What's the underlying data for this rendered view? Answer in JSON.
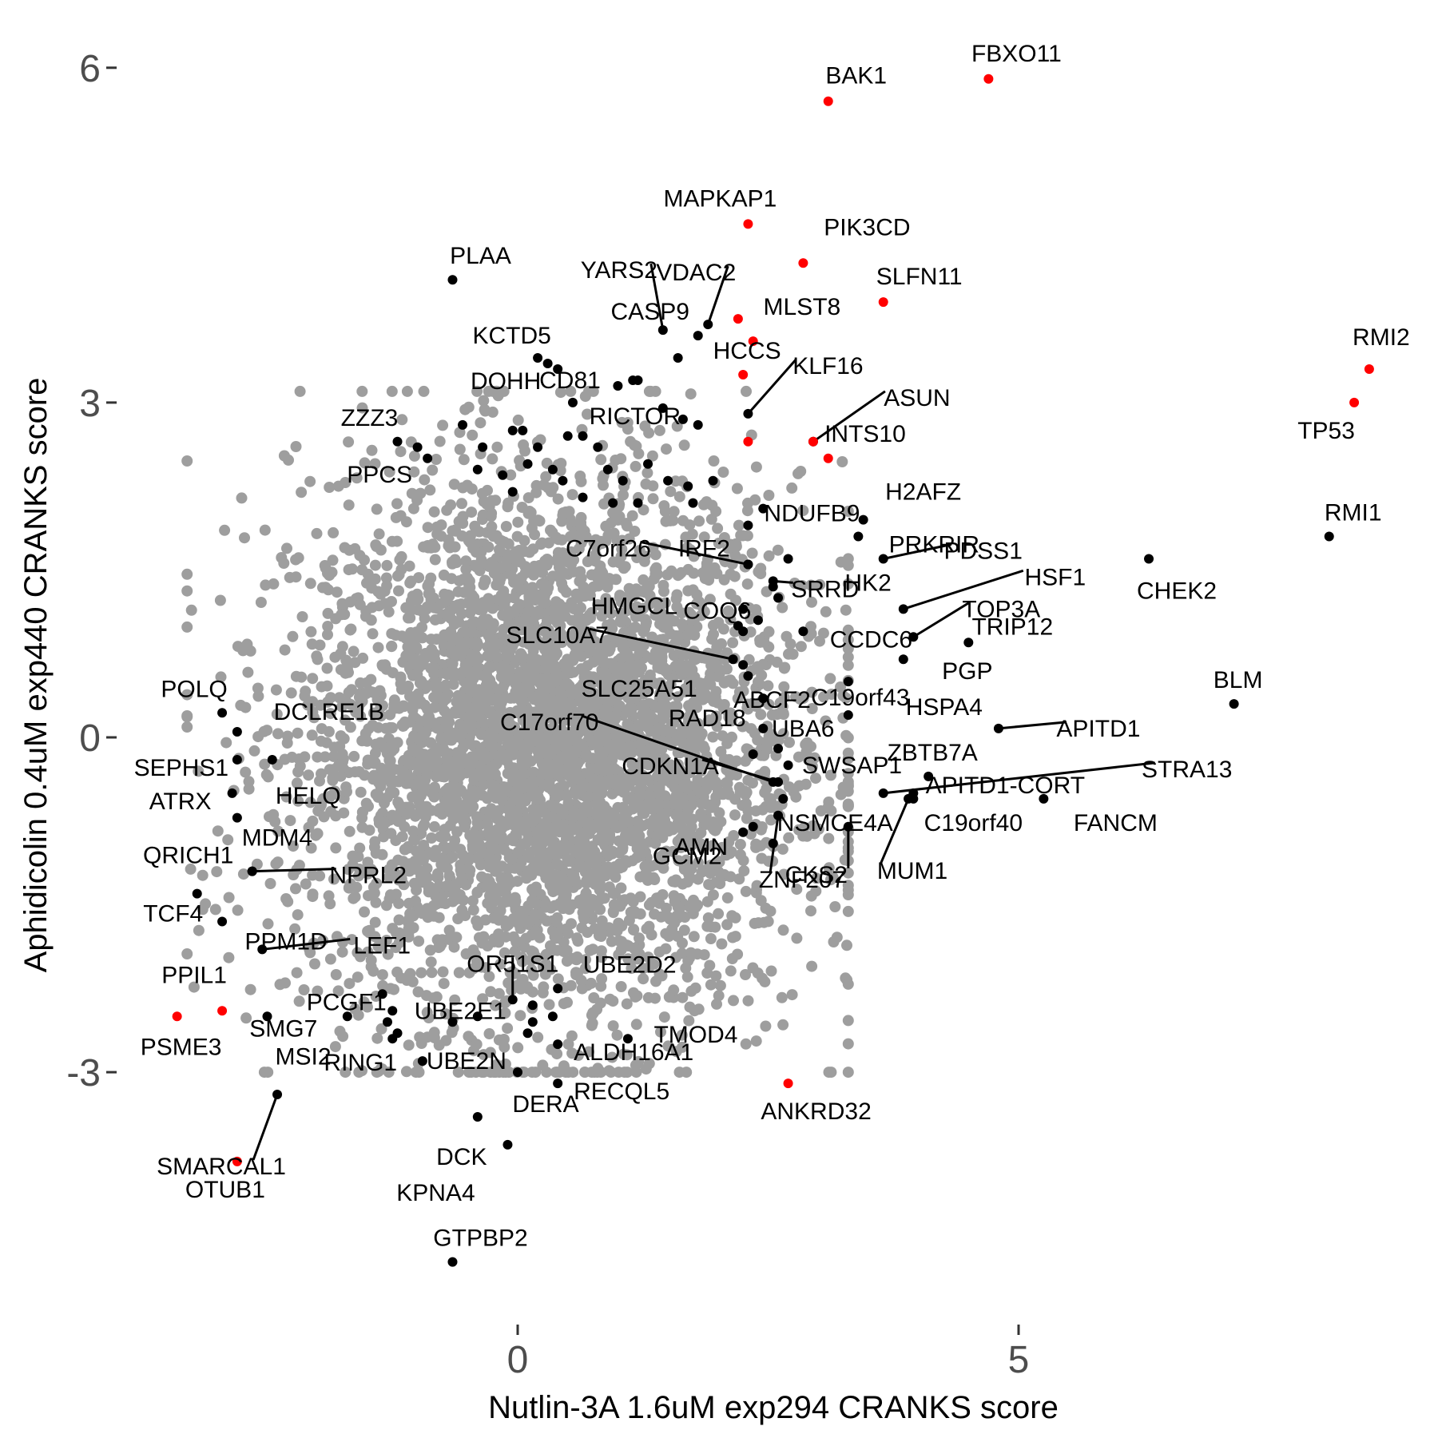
{
  "chart_data": {
    "type": "scatter",
    "xlabel": "Nutlin-3A 1.6uM exp294 CRANKS score",
    "ylabel": "Aphidicolin 0.4uM exp440 CRANKS score",
    "xlim": [
      -4.1,
      8.7
    ],
    "ylim": [
      -5.2,
      6.3
    ],
    "x_ticks": [
      0,
      5
    ],
    "x_tick_labels": [
      "0",
      "5"
    ],
    "y_ticks": [
      -3,
      0,
      3,
      6
    ],
    "y_tick_labels": [
      "-3",
      "0",
      "3",
      "6"
    ],
    "grid": false,
    "legend": "none",
    "colors": {
      "background_point": "#9e9e9e",
      "labeled_point": "#000000",
      "highlight_point": "#ff0000",
      "tick_label": "#4d4d4d"
    },
    "background_cloud": {
      "description_color": "#9e9e9e",
      "center": [
        0.3,
        -0.1
      ],
      "approx_spread": [
        1.6,
        1.7
      ],
      "n_points": 4500
    },
    "highlighted_points": [
      {
        "label": "FBXO11",
        "x": 4.7,
        "y": 5.9
      },
      {
        "label": "BAK1",
        "x": 3.1,
        "y": 5.7
      },
      {
        "label": "MAPKAP1",
        "x": 2.3,
        "y": 4.6
      },
      {
        "label": "PIK3CD",
        "x": 2.85,
        "y": 4.25
      },
      {
        "label": "SLFN11",
        "x": 3.65,
        "y": 3.9
      },
      {
        "label": "MLST8",
        "x": 2.2,
        "y": 3.75
      },
      {
        "label": "",
        "x": 2.35,
        "y": 3.55
      },
      {
        "label": "HCCS",
        "x": 2.25,
        "y": 3.25
      },
      {
        "label": "",
        "x": 2.3,
        "y": 2.65
      },
      {
        "label": "INTS10",
        "x": 2.95,
        "y": 2.65
      },
      {
        "label": "",
        "x": 3.1,
        "y": 2.5
      },
      {
        "label": "RMI2",
        "x": 8.5,
        "y": 3.3
      },
      {
        "label": "TP53",
        "x": 8.35,
        "y": 3.0
      },
      {
        "label": "ANKRD32",
        "x": 2.7,
        "y": -3.1
      },
      {
        "label": "PPIL1",
        "x": -2.95,
        "y": -2.45
      },
      {
        "label": "PSME3",
        "x": -3.4,
        "y": -2.5
      },
      {
        "label": "OTUB1",
        "x": -2.8,
        "y": -3.8
      }
    ],
    "labeled_points": [
      {
        "label": "PLAA",
        "x": -0.65,
        "y": 4.1
      },
      {
        "label": "RMI1",
        "x": 8.1,
        "y": 1.8
      },
      {
        "label": "CHEK2",
        "x": 6.3,
        "y": 1.6
      },
      {
        "label": "BLM",
        "x": 7.15,
        "y": 0.3
      },
      {
        "label": "FANCM",
        "x": 5.25,
        "y": -0.55
      },
      {
        "label": "APITD1",
        "x": 4.8,
        "y": 0.08
      },
      {
        "label": "TRIP12",
        "x": 4.5,
        "y": 0.85
      },
      {
        "label": "ZZZ3",
        "x": -1.2,
        "y": 2.65
      },
      {
        "label": "POLQ",
        "x": -2.95,
        "y": 0.22
      },
      {
        "label": "DCLRE1B",
        "x": -2.8,
        "y": 0.05
      },
      {
        "label": "SEPHS1",
        "x": -2.8,
        "y": -0.2
      },
      {
        "label": "HELQ",
        "x": -2.45,
        "y": -0.2
      },
      {
        "label": "ATRX",
        "x": -2.85,
        "y": -0.5
      },
      {
        "label": "MDM4",
        "x": -2.8,
        "y": -0.72
      },
      {
        "label": "QRICH1",
        "x": -2.65,
        "y": -1.2
      },
      {
        "label": "TCF4",
        "x": -3.2,
        "y": -1.4
      },
      {
        "label": "PPM1D",
        "x": -2.95,
        "y": -1.65
      },
      {
        "label": "LEF1",
        "x": -2.55,
        "y": -1.9
      },
      {
        "label": "SMG7",
        "x": -1.7,
        "y": -2.5
      },
      {
        "label": "RING1",
        "x": -1.25,
        "y": -2.7
      },
      {
        "label": "UBE2N",
        "x": -0.95,
        "y": -2.9
      },
      {
        "label": "DCK",
        "x": -0.4,
        "y": -3.4
      },
      {
        "label": "KPNA4",
        "x": -0.1,
        "y": -3.65
      },
      {
        "label": "DERA",
        "x": 0.0,
        "y": -3.0
      },
      {
        "label": "RECQL5",
        "x": 0.4,
        "y": -3.1
      },
      {
        "label": "ALDH16A1",
        "x": 0.4,
        "y": -2.75
      },
      {
        "label": "TMOD4",
        "x": 1.1,
        "y": -2.7
      },
      {
        "label": "UBE2D2",
        "x": 0.4,
        "y": -2.25
      },
      {
        "label": "OR51S1",
        "x": -0.05,
        "y": -2.35
      },
      {
        "label": "SMARCAL1",
        "x": -2.4,
        "y": -3.2
      },
      {
        "label": "MSI2",
        "x": -2.5,
        "y": -2.5
      },
      {
        "label": "GTPBP2",
        "x": -0.65,
        "y": -4.7
      },
      {
        "label": "KCTD5",
        "x": 0.3,
        "y": 3.35
      },
      {
        "label": "DOHH",
        "x": 0.4,
        "y": 3.3
      },
      {
        "label": "CD81",
        "x": 1.2,
        "y": 3.2
      },
      {
        "label": "YARS2",
        "x": 1.45,
        "y": 3.65
      },
      {
        "label": "CASP9",
        "x": 1.8,
        "y": 3.6
      },
      {
        "label": "VDAC2",
        "x": 1.9,
        "y": 3.7
      },
      {
        "label": "RICTOR",
        "x": 1.45,
        "y": 2.95
      },
      {
        "label": "KLF16",
        "x": 2.3,
        "y": 2.9
      },
      {
        "label": "ASUN",
        "x": 2.95,
        "y": 2.65
      },
      {
        "label": "NDUFB9",
        "x": 2.3,
        "y": 1.9
      },
      {
        "label": "H2AFZ",
        "x": 3.45,
        "y": 1.95
      },
      {
        "label": "HK2",
        "x": 2.7,
        "y": 1.6
      },
      {
        "label": "PRKRIR",
        "x": 3.4,
        "y": 1.8
      },
      {
        "label": "C7orf26",
        "x": 2.3,
        "y": 1.55
      },
      {
        "label": "IRF2",
        "x": 2.3,
        "y": 1.55
      },
      {
        "label": "SRRD",
        "x": 2.55,
        "y": 1.4
      },
      {
        "label": "PDSS1",
        "x": 3.65,
        "y": 1.6
      },
      {
        "label": "COQ6",
        "x": 2.55,
        "y": 1.35
      },
      {
        "label": "HSF1",
        "x": 3.85,
        "y": 1.15
      },
      {
        "label": "CCDC6",
        "x": 2.85,
        "y": 0.95
      },
      {
        "label": "TOP3A",
        "x": 3.95,
        "y": 0.9
      },
      {
        "label": "HMGCL",
        "x": 2.2,
        "y": 1.0
      },
      {
        "label": "SLC10A7",
        "x": 2.15,
        "y": 0.7
      },
      {
        "label": "SLC25A51",
        "x": 2.25,
        "y": 0.65
      },
      {
        "label": "ABCF2",
        "x": 2.3,
        "y": 0.55
      },
      {
        "label": "C19orf43",
        "x": 3.3,
        "y": 0.5
      },
      {
        "label": "PGP",
        "x": 3.85,
        "y": 0.7
      },
      {
        "label": "RAD18",
        "x": 2.45,
        "y": 0.35
      },
      {
        "label": "UBA6",
        "x": 2.45,
        "y": 0.08
      },
      {
        "label": "HSPA4",
        "x": 3.3,
        "y": 0.2
      },
      {
        "label": "C17orf70",
        "x": 2.55,
        "y": -0.4
      },
      {
        "label": "CDKN1A",
        "x": 2.6,
        "y": -0.4
      },
      {
        "label": "SWSAP1",
        "x": 2.7,
        "y": -0.25
      },
      {
        "label": "ZBTB7A",
        "x": 4.1,
        "y": -0.35
      },
      {
        "label": "APITD1-CORT",
        "x": 3.95,
        "y": -0.5
      },
      {
        "label": "STRA13",
        "x": 3.65,
        "y": -0.5
      },
      {
        "label": "NSMCE4A",
        "x": 2.65,
        "y": -0.55
      },
      {
        "label": "AMN",
        "x": 2.35,
        "y": -0.8
      },
      {
        "label": "ZNF207",
        "x": 2.6,
        "y": -0.7
      },
      {
        "label": "C19orf40",
        "x": 3.95,
        "y": -0.55
      },
      {
        "label": "GCM2",
        "x": 2.25,
        "y": -0.85
      },
      {
        "label": "MUM1",
        "x": 3.9,
        "y": -0.55
      },
      {
        "label": "CKS2",
        "x": 3.3,
        "y": -0.8
      },
      {
        "label": "NPRL2",
        "x": -2.65,
        "y": -1.2
      },
      {
        "label": "PPCS",
        "x": -0.9,
        "y": 2.5
      },
      {
        "label": "PCGF1",
        "x": -1.35,
        "y": -2.3
      },
      {
        "label": "UBE2E1",
        "x": -1.25,
        "y": -2.45
      }
    ],
    "unlabeled_black_points": [
      {
        "x": -1.0,
        "y": 2.6
      },
      {
        "x": -0.55,
        "y": 2.8
      },
      {
        "x": -0.35,
        "y": 2.6
      },
      {
        "x": -0.05,
        "y": 2.75
      },
      {
        "x": 0.05,
        "y": 2.75
      },
      {
        "x": 0.2,
        "y": 2.6
      },
      {
        "x": 0.5,
        "y": 2.7
      },
      {
        "x": 0.65,
        "y": 2.7
      },
      {
        "x": 0.8,
        "y": 2.6
      },
      {
        "x": -0.4,
        "y": 2.4
      },
      {
        "x": -0.15,
        "y": 2.35
      },
      {
        "x": 0.1,
        "y": 2.45
      },
      {
        "x": 0.35,
        "y": 2.4
      },
      {
        "x": 0.45,
        "y": 2.3
      },
      {
        "x": 0.9,
        "y": 2.4
      },
      {
        "x": 1.05,
        "y": 2.3
      },
      {
        "x": 1.3,
        "y": 2.45
      },
      {
        "x": 1.5,
        "y": 2.3
      },
      {
        "x": 1.7,
        "y": 2.25
      },
      {
        "x": 1.95,
        "y": 2.3
      },
      {
        "x": -0.05,
        "y": 2.2
      },
      {
        "x": 0.65,
        "y": 2.15
      },
      {
        "x": 0.95,
        "y": 2.1
      },
      {
        "x": 1.2,
        "y": 2.1
      },
      {
        "x": 1.75,
        "y": 2.1
      },
      {
        "x": 0.55,
        "y": 3.0
      },
      {
        "x": 1.0,
        "y": 3.15
      },
      {
        "x": 1.15,
        "y": 3.2
      },
      {
        "x": 1.65,
        "y": 2.85
      },
      {
        "x": 1.8,
        "y": 2.8
      },
      {
        "x": 0.2,
        "y": 3.4
      },
      {
        "x": 1.6,
        "y": 3.4
      },
      {
        "x": 2.45,
        "y": 2.05
      },
      {
        "x": 2.6,
        "y": 1.25
      },
      {
        "x": 2.4,
        "y": 1.05
      },
      {
        "x": 2.25,
        "y": 1.15
      },
      {
        "x": 2.25,
        "y": 0.95
      },
      {
        "x": 2.55,
        "y": -0.95
      },
      {
        "x": 2.35,
        "y": -0.15
      },
      {
        "x": 2.6,
        "y": -0.1
      },
      {
        "x": -1.3,
        "y": -2.55
      },
      {
        "x": -1.2,
        "y": -2.65
      },
      {
        "x": -0.65,
        "y": -2.55
      },
      {
        "x": -0.4,
        "y": -2.5
      },
      {
        "x": 0.15,
        "y": -2.55
      },
      {
        "x": 0.15,
        "y": -2.4
      },
      {
        "x": 0.1,
        "y": -2.65
      },
      {
        "x": 0.35,
        "y": -2.5
      }
    ]
  }
}
